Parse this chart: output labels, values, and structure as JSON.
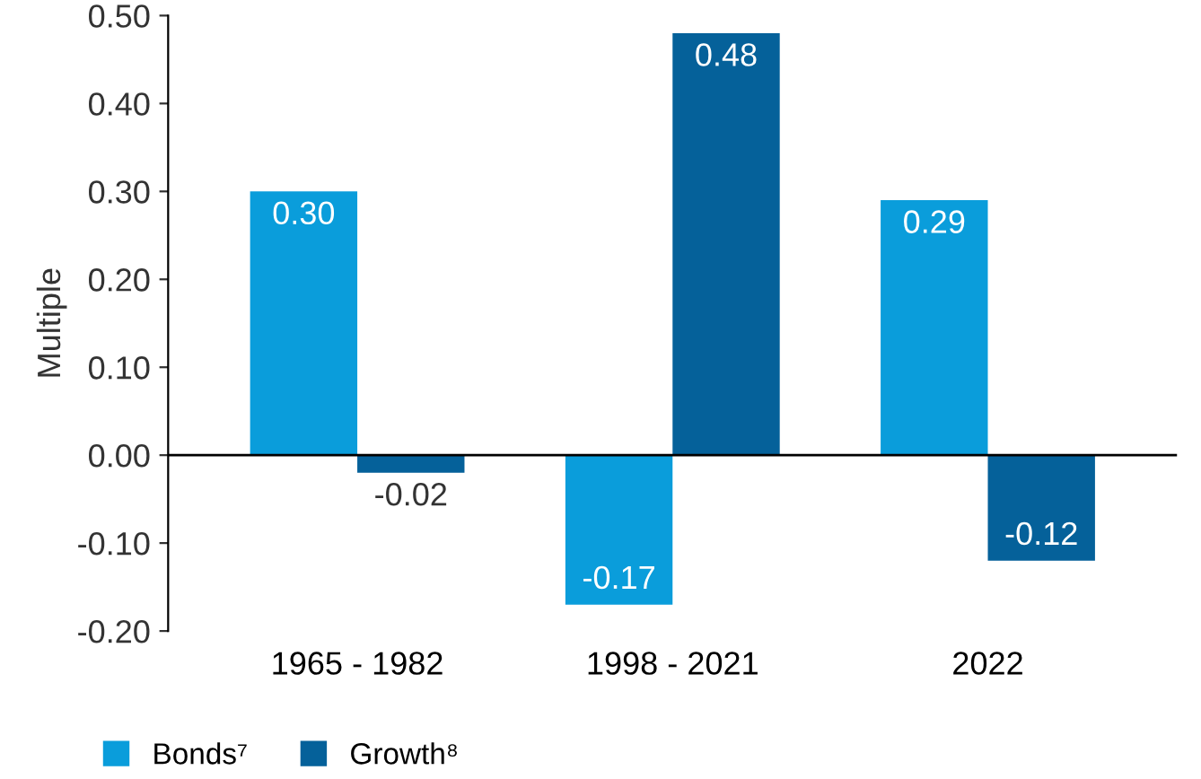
{
  "chart_data": {
    "type": "bar",
    "ylabel": "Multiple",
    "categories": [
      "1965 - 1982",
      "1998 - 2021",
      "2022"
    ],
    "series": [
      {
        "name": "Bonds⁷",
        "color": "#0a9ddb",
        "values": [
          0.3,
          -0.17,
          0.29
        ],
        "value_labels": [
          "0.30",
          "-0.17",
          "0.29"
        ]
      },
      {
        "name": "Growth⁸",
        "color": "#05619a",
        "values": [
          -0.02,
          0.48,
          -0.12
        ],
        "value_labels": [
          "-0.02",
          "0.48",
          "-0.12"
        ]
      }
    ],
    "ylim": [
      -0.2,
      0.5
    ],
    "yticks": [
      {
        "value": -0.2,
        "label": "-0.20"
      },
      {
        "value": -0.1,
        "label": "-0.10"
      },
      {
        "value": 0,
        "label": "0.00"
      },
      {
        "value": 0.1,
        "label": "0.10"
      },
      {
        "value": 0.2,
        "label": "0.20"
      },
      {
        "value": 0.3,
        "label": "0.30"
      },
      {
        "value": 0.4,
        "label": "0.40"
      },
      {
        "value": 0.5,
        "label": "0.50"
      }
    ],
    "ref_lines": [
      {
        "axis": "y",
        "value": 0,
        "color": "#000000"
      }
    ],
    "legend": "bottom left"
  }
}
